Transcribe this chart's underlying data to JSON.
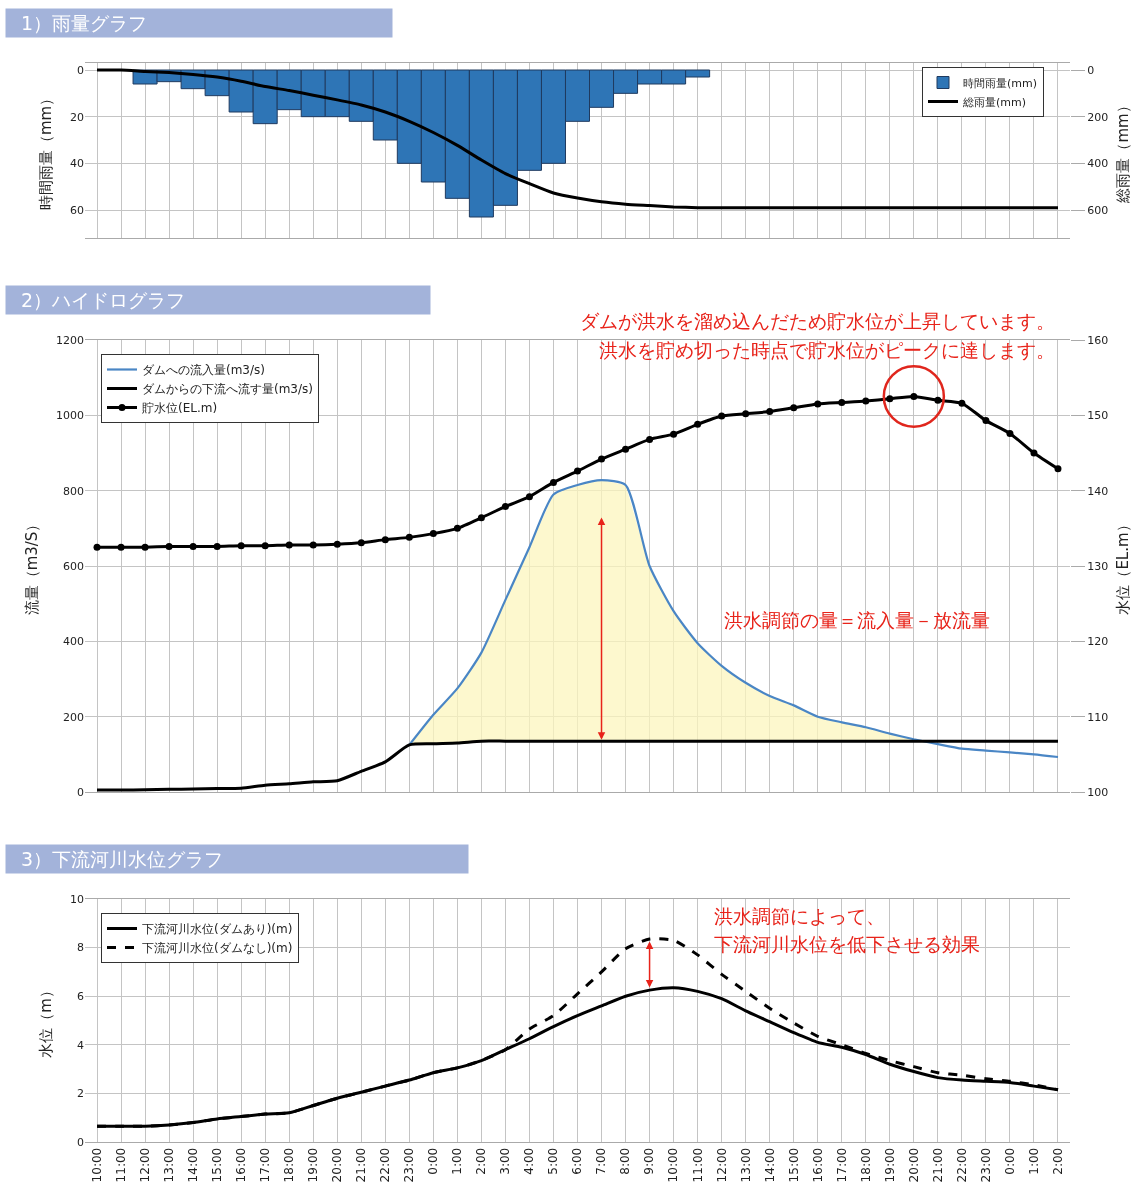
{
  "chart_data": [
    {
      "type": "bar",
      "title": "1）雨量グラフ",
      "ylabel": "時間雨量（mm）",
      "y2label": "総雨量（mm）",
      "categories": [
        null,
        null,
        null,
        null,
        null,
        null,
        null,
        null,
        null,
        null,
        null,
        null,
        null,
        null,
        null,
        null,
        null,
        null,
        null,
        null,
        null,
        null,
        null,
        null,
        null,
        null,
        null,
        null,
        null,
        null,
        null,
        null,
        null,
        null,
        null,
        null,
        null,
        null,
        null,
        null,
        null
      ],
      "ylim": [
        72,
        -3
      ],
      "yticks": [
        0,
        20,
        40,
        60
      ],
      "y2lim": [
        720,
        -30
      ],
      "y2ticks": [
        0,
        200,
        400,
        600
      ],
      "grid": true,
      "legend": "top right",
      "series": [
        {
          "name": "時間雨量(mm)",
          "type": "bar",
          "color": "#2e75b6",
          "values": [
            null,
            null,
            6,
            5,
            8,
            11,
            18,
            23,
            17,
            20,
            20,
            22,
            30,
            40,
            48,
            55,
            63,
            58,
            43,
            40,
            22,
            16,
            10,
            6,
            6,
            3,
            null,
            null,
            null,
            null,
            null,
            null,
            null,
            null,
            null,
            null,
            null,
            null,
            null,
            null,
            null
          ]
        },
        {
          "name": "総雨量(mm)",
          "type": "line",
          "axis": "y2",
          "color": "#000000",
          "values": [
            0,
            0,
            6,
            11,
            19,
            30,
            48,
            71,
            88,
            108,
            128,
            150,
            180,
            220,
            268,
            323,
            386,
            444,
            487,
            527,
            549,
            565,
            575,
            581,
            587,
            590,
            590,
            590,
            590,
            590,
            590,
            590,
            590,
            590,
            590,
            590,
            590,
            590,
            590,
            590,
            590
          ]
        }
      ]
    },
    {
      "type": "line",
      "title": "2）ハイドログラフ",
      "ylabel": "流量（m3/S）",
      "y2label": "水位（EL.m）",
      "categories": [
        null,
        null,
        null,
        null,
        null,
        null,
        null,
        null,
        null,
        null,
        null,
        null,
        null,
        null,
        null,
        null,
        null,
        null,
        null,
        null,
        null,
        null,
        null,
        null,
        null,
        null,
        null,
        null,
        null,
        null,
        null,
        null,
        null,
        null,
        null,
        null,
        null,
        null,
        null,
        null,
        null
      ],
      "ylim": [
        0,
        1200
      ],
      "yticks": [
        0,
        200,
        400,
        600,
        800,
        1000,
        1200
      ],
      "y2lim": [
        100,
        160
      ],
      "y2ticks": [
        100,
        110,
        120,
        130,
        140,
        150,
        160
      ],
      "grid": true,
      "legend": "top left",
      "annotations": [
        "ダムが洪水を溜め込んだため貯水位が上昇しています。",
        "洪水を貯め切った時点で貯水位がピークに達します。",
        "洪水調節の量＝流入量－放流量"
      ],
      "series": [
        {
          "name": "ダムへの流入量(m3/s)",
          "color": "#4a86c5",
          "values": [
            null,
            null,
            null,
            null,
            null,
            null,
            null,
            null,
            null,
            null,
            null,
            null,
            null,
            125,
            205,
            275,
            370,
            510,
            650,
            790,
            815,
            828,
            815,
            600,
            480,
            395,
            335,
            290,
            255,
            230,
            200,
            185,
            172,
            155,
            140,
            127,
            115,
            110,
            105,
            100,
            93
          ],
          "lower": [
            null,
            null,
            null,
            null,
            null,
            null,
            null,
            null,
            null,
            null,
            null,
            null,
            null,
            125,
            128,
            130,
            135,
            135,
            135,
            135,
            135,
            135,
            135,
            135,
            135,
            135,
            135,
            135,
            135,
            135,
            135,
            135,
            135,
            135,
            135,
            127,
            115,
            110,
            105,
            100,
            93
          ],
          "upper": [
            null,
            null,
            null,
            null,
            null,
            null,
            null,
            null,
            null,
            null,
            null,
            null,
            null,
            125,
            205,
            275,
            370,
            510,
            650,
            790,
            815,
            828,
            815,
            600,
            480,
            395,
            335,
            290,
            255,
            230,
            200,
            185,
            172,
            155,
            140,
            127,
            115,
            110,
            105,
            100,
            93
          ]
        },
        {
          "name": "ダムからの下流へ流す量(m3/s)",
          "color": "#000000",
          "values": [
            5,
            5,
            6,
            7,
            8,
            9,
            10,
            18,
            22,
            27,
            30,
            55,
            80,
            125,
            128,
            130,
            135,
            135,
            135,
            135,
            135,
            135,
            135,
            135,
            135,
            135,
            135,
            135,
            135,
            135,
            135,
            135,
            135,
            135,
            135,
            135,
            135,
            135,
            135,
            135,
            135
          ]
        },
        {
          "name": "貯水位(EL.m)",
          "color": "#000000",
          "axis": "y2",
          "marker": "circle",
          "values": [
            132.5,
            132.5,
            132.5,
            132.6,
            132.6,
            132.6,
            132.7,
            132.7,
            132.8,
            132.8,
            132.9,
            133.1,
            133.5,
            133.8,
            134.3,
            135.0,
            136.4,
            137.9,
            139.2,
            141.1,
            142.6,
            144.2,
            145.5,
            146.8,
            147.5,
            148.8,
            149.9,
            150.2,
            150.5,
            151.0,
            151.5,
            151.7,
            151.9,
            152.2,
            152.5,
            152.0,
            151.6,
            149.3,
            147.6,
            145.0,
            142.9
          ]
        }
      ]
    },
    {
      "type": "line",
      "title": "3）下流河川水位グラフ",
      "ylabel": "水位（m）",
      "categories": [
        "10:00",
        "11:00",
        "12:00",
        "13:00",
        "14:00",
        "15:00",
        "16:00",
        "17:00",
        "18:00",
        "19:00",
        "20:00",
        "21:00",
        "22:00",
        "23:00",
        "0:00",
        "1:00",
        "2:00",
        "3:00",
        "4:00",
        "5:00",
        "6:00",
        "7:00",
        "8:00",
        "9:00",
        "10:00",
        "11:00",
        "12:00",
        "13:00",
        "14:00",
        "15:00",
        "16:00",
        "17:00",
        "18:00",
        "19:00",
        "20:00",
        "21:00",
        "22:00",
        "23:00",
        "0:00",
        "1:00",
        "2:00"
      ],
      "ylim": [
        0,
        10
      ],
      "yticks": [
        0,
        2,
        4,
        6,
        8,
        10
      ],
      "grid": true,
      "legend": "top left",
      "annotations": [
        "洪水調節によって、",
        "下流河川水位を低下させる効果"
      ],
      "series": [
        {
          "name": "下流河川水位(ダムあり)(m)",
          "color": "#000000",
          "line_style": "solid",
          "values": [
            0.65,
            0.65,
            0.65,
            0.7,
            0.8,
            0.95,
            1.05,
            1.15,
            1.2,
            1.5,
            1.8,
            2.05,
            2.3,
            2.55,
            2.85,
            3.05,
            3.35,
            3.8,
            4.25,
            4.75,
            5.2,
            5.6,
            6.0,
            6.25,
            6.35,
            6.2,
            5.9,
            5.4,
            4.95,
            4.5,
            4.1,
            3.9,
            3.6,
            3.2,
            2.9,
            2.65,
            2.55,
            2.5,
            2.45,
            2.3,
            2.15
          ]
        },
        {
          "name": "下流河川水位(ダムなし)(m)",
          "color": "#000000",
          "line_style": "dashed",
          "values": [
            0.65,
            0.65,
            0.65,
            0.7,
            0.8,
            0.95,
            1.05,
            1.15,
            1.2,
            1.5,
            1.8,
            2.05,
            2.3,
            2.55,
            2.85,
            3.05,
            3.35,
            3.8,
            4.65,
            5.2,
            6.1,
            7.0,
            7.95,
            8.35,
            8.3,
            7.7,
            6.9,
            6.2,
            5.5,
            4.9,
            4.35,
            4.0,
            3.65,
            3.35,
            3.1,
            2.85,
            2.75,
            2.6,
            2.5,
            2.35,
            2.15
          ]
        }
      ]
    }
  ]
}
